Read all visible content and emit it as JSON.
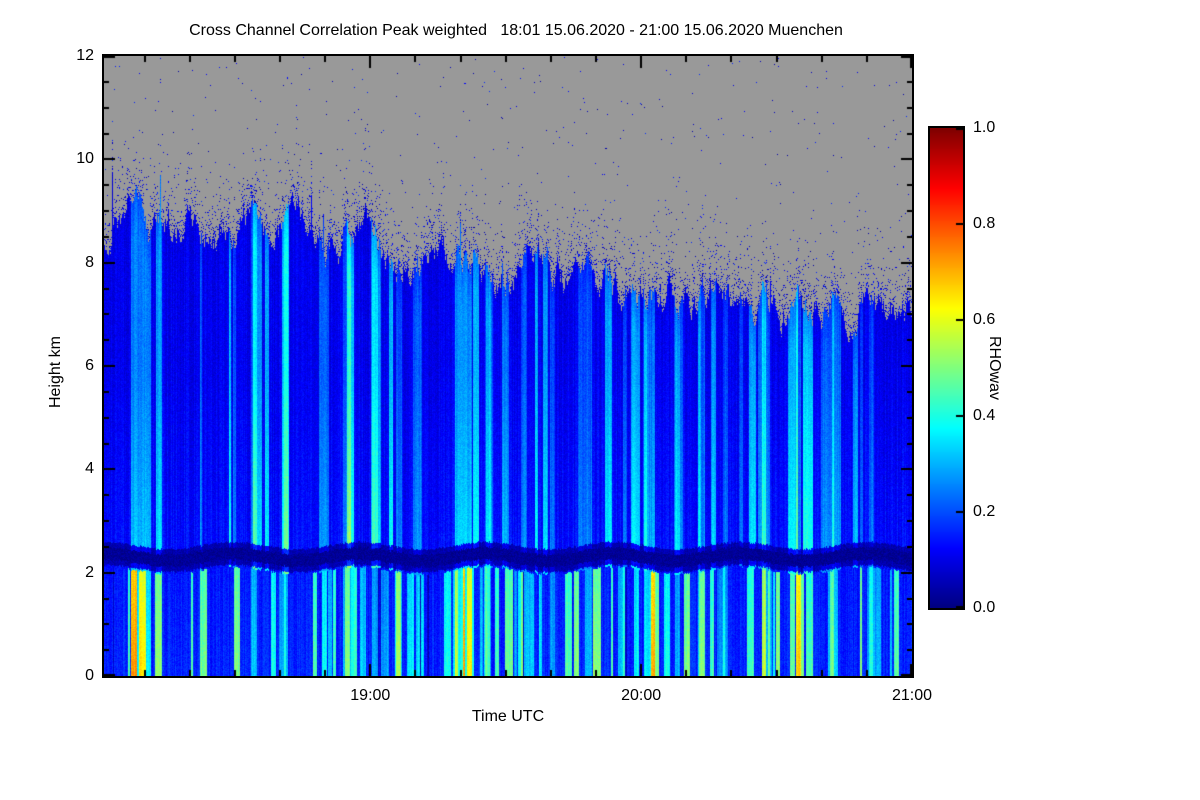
{
  "chart_data": {
    "type": "heatmap",
    "title": "Cross Channel Correlation Peak weighted   18:01 15.06.2020 - 21:00 15.06.2020 Muenchen",
    "xlabel": "Time UTC",
    "ylabel": "Height km",
    "x_start_utc": "18:01",
    "x_end_utc": "21:00",
    "x_total_minutes": 179,
    "x_ticks": [
      {
        "label": "19:00",
        "frac": 0.3296
      },
      {
        "label": "20:00",
        "frac": 0.6648
      },
      {
        "label": "21:00",
        "frac": 1.0
      }
    ],
    "x_minor_every_min": 10,
    "y_ticks": [
      0,
      2,
      4,
      6,
      8,
      10,
      12
    ],
    "y_range": [
      0,
      12
    ],
    "colorbar": {
      "label": "RHOwav",
      "ticks": [
        0.0,
        0.2,
        0.4,
        0.6,
        0.8,
        1.0
      ],
      "range": [
        0,
        1
      ],
      "colormap": "jet"
    },
    "no_data_color": "#999999",
    "features": {
      "layer_top_km": {
        "frac": [
          0,
          0.03,
          0.06,
          0.1,
          0.13,
          0.17,
          0.2,
          0.24,
          0.28,
          0.33,
          0.38,
          0.42,
          0.46,
          0.5,
          0.54,
          0.58,
          0.62,
          0.66,
          0.7,
          0.75,
          0.8,
          0.85,
          0.9,
          0.95,
          1.0
        ],
        "km": [
          8.3,
          8.8,
          8.5,
          9.0,
          8.6,
          8.9,
          8.5,
          8.8,
          8.3,
          8.5,
          8.1,
          8.3,
          7.9,
          7.8,
          7.9,
          7.5,
          7.6,
          7.3,
          7.4,
          7.2,
          7.3,
          7.1,
          7.2,
          7.0,
          7.05
        ]
      },
      "dark_band": {
        "center_km": 2.3,
        "halfwidth_km": 0.12,
        "value": 0.02
      },
      "background_value_range": [
        0.05,
        0.2
      ],
      "bright_stripe_value_range": [
        0.3,
        0.45
      ],
      "bright_columns": [
        [
          0.045,
          0.025,
          0.2
        ],
        [
          0.185,
          0.008,
          0.14
        ],
        [
          0.225,
          0.006,
          0.12
        ],
        [
          0.3,
          0.01,
          0.15
        ],
        [
          0.335,
          0.007,
          0.12
        ],
        [
          0.365,
          0.008,
          0.13
        ],
        [
          0.445,
          0.022,
          0.22
        ],
        [
          0.475,
          0.008,
          0.12
        ],
        [
          0.52,
          0.007,
          0.14
        ],
        [
          0.555,
          0.006,
          0.12
        ],
        [
          0.6,
          0.009,
          0.13
        ],
        [
          0.645,
          0.006,
          0.12
        ],
        [
          0.675,
          0.014,
          0.18
        ],
        [
          0.71,
          0.006,
          0.12
        ],
        [
          0.74,
          0.008,
          0.14
        ],
        [
          0.77,
          0.006,
          0.12
        ],
        [
          0.82,
          0.01,
          0.15
        ],
        [
          0.86,
          0.007,
          0.13
        ],
        [
          0.9,
          0.008,
          0.14
        ],
        [
          0.95,
          0.006,
          0.12
        ]
      ],
      "speckle_above_top": true
    }
  }
}
